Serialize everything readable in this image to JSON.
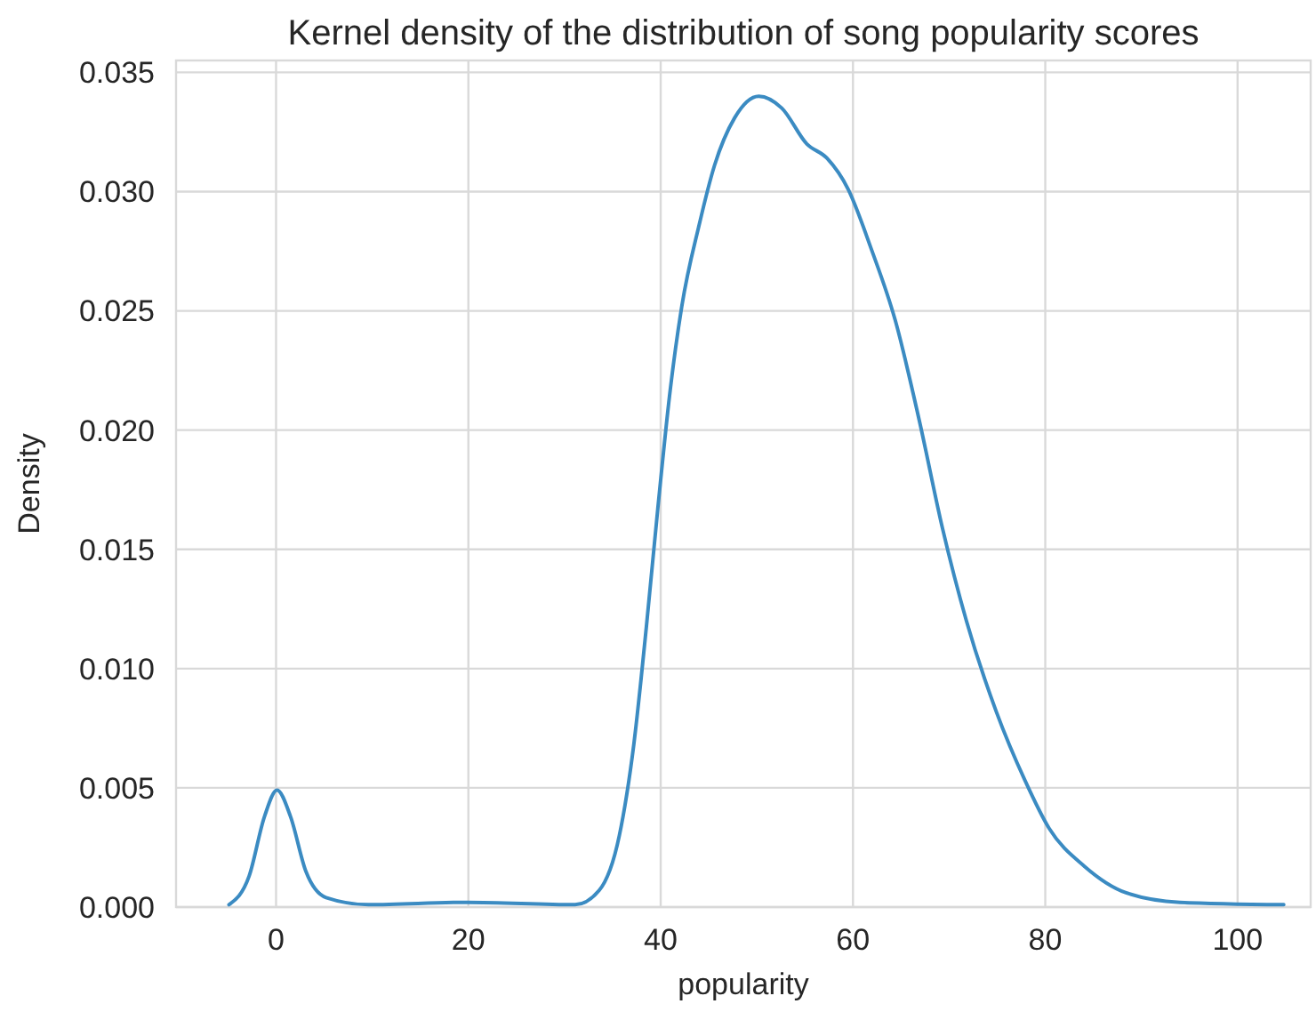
{
  "chart_data": {
    "type": "line",
    "title": "Kernel density of the distribution of song popularity scores",
    "xlabel": "popularity",
    "ylabel": "Density",
    "x": [
      -4.9,
      -2.8,
      -1.2,
      0.1,
      1.5,
      3.1,
      5.2,
      9.6,
      19.9,
      31.1,
      33.6,
      35.7,
      37.2,
      38.5,
      39.7,
      41.0,
      42.2,
      44.0,
      45.6,
      47.7,
      50.2,
      52.6,
      55.2,
      57.3,
      59.5,
      61.9,
      64.4,
      66.9,
      69.3,
      71.8,
      74.9,
      77.9,
      80.4,
      84.1,
      88.4,
      94.0,
      104.8
    ],
    "series": [
      {
        "color": "#3b8bc2",
        "values": [
          0.0001,
          0.0013,
          0.0038,
          0.0049,
          0.0038,
          0.0015,
          0.0004,
          0.0001,
          0.0002,
          0.0001,
          0.0007,
          0.003,
          0.0068,
          0.0117,
          0.0167,
          0.0217,
          0.0252,
          0.0286,
          0.0311,
          0.0331,
          0.034,
          0.0335,
          0.032,
          0.0314,
          0.0301,
          0.0276,
          0.0246,
          0.0204,
          0.0159,
          0.012,
          0.0082,
          0.0053,
          0.0033,
          0.0017,
          0.0006,
          0.0002,
          0.0001
        ]
      }
    ],
    "xlim": [
      -10.4,
      107.6
    ],
    "ylim": [
      0,
      0.0355
    ],
    "xticks": [
      0,
      20,
      40,
      60,
      80,
      100
    ],
    "yticks": [
      {
        "value": 0,
        "label": "0.000"
      },
      {
        "value": 0.005,
        "label": "0.005"
      },
      {
        "value": 0.01,
        "label": "0.010"
      },
      {
        "value": 0.015,
        "label": "0.015"
      },
      {
        "value": 0.02,
        "label": "0.020"
      },
      {
        "value": 0.025,
        "label": "0.025"
      },
      {
        "value": 0.03,
        "label": "0.030"
      },
      {
        "value": 0.035,
        "label": "0.035"
      }
    ],
    "grid": true,
    "line_style": "solid",
    "marker": "none"
  }
}
